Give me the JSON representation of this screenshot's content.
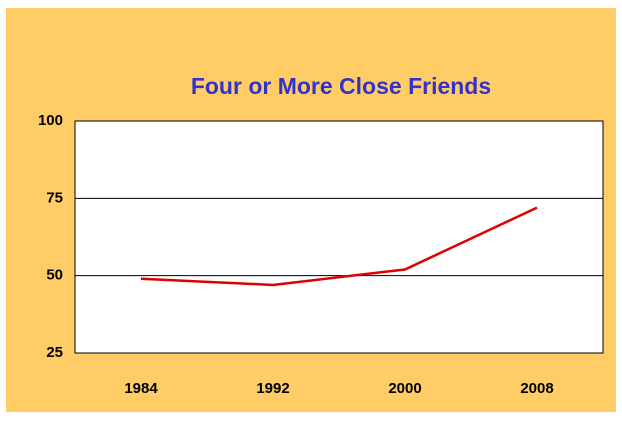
{
  "chart_data": {
    "type": "line",
    "title": "Four or More Close Friends",
    "categories": [
      "1984",
      "1992",
      "2000",
      "2008"
    ],
    "values": [
      49,
      47,
      52,
      72
    ],
    "color": "#e00000",
    "ylim": [
      25,
      100
    ],
    "yticks": [
      25,
      50,
      75,
      100
    ],
    "grid": true
  }
}
